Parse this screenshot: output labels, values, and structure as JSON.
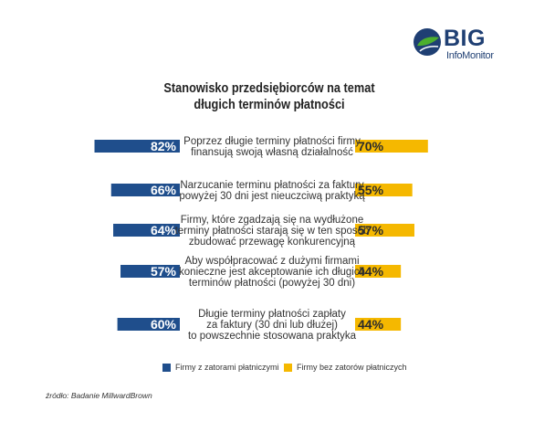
{
  "brand": {
    "name": "BIG",
    "sub": "InfoMonitor",
    "logo_colors": [
      "#1f3f73",
      "#4caf2e"
    ]
  },
  "title_lines": [
    "Stanowisko przedsiębiorców na temat",
    "długich terminów płatności"
  ],
  "colors": {
    "with_delays": "#1f4e8c",
    "without_delays": "#f5b800",
    "percent_with": "#ffffff",
    "percent_without": "#2b2b2b"
  },
  "chart_data": {
    "type": "bar",
    "orientation": "horizontal-diverging",
    "title": "Stanowisko przedsiębiorców na temat długich terminów płatności",
    "categories": [
      [
        "Poprzez długie terminy płatności firmy",
        "finansują swoją własną działalność"
      ],
      [
        "Narzucanie terminu płatności za faktury",
        "powyżej 30 dni jest nieuczciwą praktyką"
      ],
      [
        "Firmy, które zgadzają się na wydłużone",
        "terminy płatności starają się w ten sposób",
        "zbudować przewagę konkurencyjną"
      ],
      [
        "Aby współpracować z dużymi firmami",
        "konieczne jest akceptowanie ich długich",
        "terminów płatności (powyżej 30 dni)"
      ],
      [
        "Długie terminy płatności zapłaty",
        "za faktury (30 dni lub dłużej)",
        "to powszechnie stosowana praktyka"
      ]
    ],
    "series": [
      {
        "name": "Firmy z zatorami płatniczymi",
        "values": [
          82,
          66,
          64,
          57,
          60
        ],
        "labels": [
          "82%",
          "66%",
          "64%",
          "57%",
          "60%"
        ]
      },
      {
        "name": "Firmy bez zatorów płatniczych",
        "values": [
          70,
          55,
          57,
          44,
          44
        ],
        "labels": [
          "70%",
          "55%",
          "57%",
          "44%",
          "44%"
        ]
      }
    ],
    "legend": "bottom-center",
    "grid": false
  },
  "source": "źródło: Badanie MillwardBrown"
}
